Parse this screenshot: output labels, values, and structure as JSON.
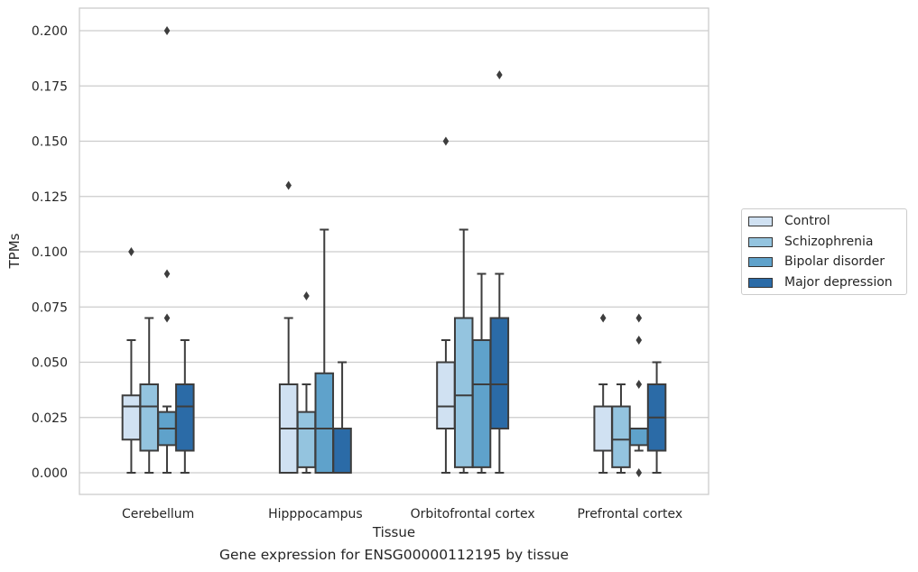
{
  "chart_data": {
    "type": "box",
    "title": "",
    "caption": "Gene expression for ENSG00000112195 by tissue",
    "xlabel": "Tissue",
    "ylabel": "TPMs",
    "ylim": [
      -0.01,
      0.21
    ],
    "yticks": [
      "0.000",
      "0.025",
      "0.050",
      "0.075",
      "0.100",
      "0.125",
      "0.150",
      "0.175",
      "0.200"
    ],
    "ytick_values": [
      0,
      0.025,
      0.05,
      0.075,
      0.1,
      0.125,
      0.15,
      0.175,
      0.2
    ],
    "grid": "horizontal",
    "legend_placement": "right-outside",
    "categories": [
      "Cerebellum",
      "Hipppocampus",
      "Orbitofrontal cortex",
      "Prefrontal cortex"
    ],
    "series": [
      {
        "name": "Control",
        "color": "#d0e1f2",
        "boxes": [
          {
            "whislo": 0,
            "q1": 0.015,
            "med": 0.03,
            "q3": 0.035,
            "whishi": 0.06,
            "fliers": [
              0.1
            ]
          },
          {
            "whislo": 0,
            "q1": 0,
            "med": 0.02,
            "q3": 0.04,
            "whishi": 0.07,
            "fliers": [
              0.13
            ]
          },
          {
            "whislo": 0,
            "q1": 0.02,
            "med": 0.03,
            "q3": 0.05,
            "whishi": 0.06,
            "fliers": [
              0.15
            ]
          },
          {
            "whislo": 0,
            "q1": 0.01,
            "med": 0.03,
            "q3": 0.03,
            "whishi": 0.04,
            "fliers": [
              0.07
            ]
          }
        ]
      },
      {
        "name": "Schizophrenia",
        "color": "#94c4df",
        "boxes": [
          {
            "whislo": 0,
            "q1": 0.01,
            "med": 0.03,
            "q3": 0.04,
            "whishi": 0.07,
            "fliers": []
          },
          {
            "whislo": 0,
            "q1": 0.0025,
            "med": 0.02,
            "q3": 0.0275,
            "whishi": 0.04,
            "fliers": [
              0.08
            ]
          },
          {
            "whislo": 0,
            "q1": 0.0025,
            "med": 0.035,
            "q3": 0.07,
            "whishi": 0.11,
            "fliers": []
          },
          {
            "whislo": 0,
            "q1": 0.0025,
            "med": 0.015,
            "q3": 0.03,
            "whishi": 0.04,
            "fliers": []
          }
        ]
      },
      {
        "name": "Bipolar disorder",
        "color": "#5fa2cb",
        "boxes": [
          {
            "whislo": 0,
            "q1": 0.0125,
            "med": 0.02,
            "q3": 0.0275,
            "whishi": 0.03,
            "fliers": [
              0.2,
              0.09,
              0.07
            ]
          },
          {
            "whislo": 0,
            "q1": 0,
            "med": 0.02,
            "q3": 0.045,
            "whishi": 0.11,
            "fliers": []
          },
          {
            "whislo": 0,
            "q1": 0.0025,
            "med": 0.04,
            "q3": 0.06,
            "whishi": 0.09,
            "fliers": []
          },
          {
            "whislo": 0.01,
            "q1": 0.0125,
            "med": 0.02,
            "q3": 0.02,
            "whishi": 0.02,
            "fliers": [
              0.07,
              0.06,
              0.04,
              0
            ]
          }
        ]
      },
      {
        "name": "Major depression",
        "color": "#2b6ba7",
        "boxes": [
          {
            "whislo": 0,
            "q1": 0.01,
            "med": 0.03,
            "q3": 0.04,
            "whishi": 0.06,
            "fliers": []
          },
          {
            "whislo": 0,
            "q1": 0,
            "med": 0.02,
            "q3": 0.02,
            "whishi": 0.05,
            "fliers": []
          },
          {
            "whislo": 0,
            "q1": 0.02,
            "med": 0.04,
            "q3": 0.07,
            "whishi": 0.09,
            "fliers": [
              0.18
            ]
          },
          {
            "whislo": 0,
            "q1": 0.01,
            "med": 0.025,
            "q3": 0.04,
            "whishi": 0.05,
            "fliers": []
          }
        ]
      }
    ]
  }
}
